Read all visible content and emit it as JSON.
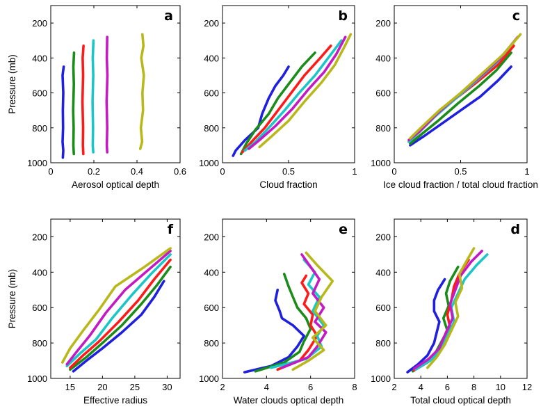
{
  "chart_data": [
    {
      "type": "line",
      "panel_letter": "a",
      "xlabel": "Aerosol optical depth",
      "ylabel": "Pressure (mb)",
      "xlim": [
        0,
        0.6
      ],
      "ylim": [
        1000,
        100
      ],
      "xticks": [
        "0",
        "0.2",
        "0.4",
        "0.6"
      ],
      "yticks": [
        "200",
        "400",
        "600",
        "800",
        "1000"
      ],
      "series": [
        {
          "color": "#1f1fe0",
          "x": [
            0.06,
            0.055,
            0.058,
            0.056,
            0.057,
            0.055,
            0.058,
            0.056
          ],
          "y": [
            450,
            500,
            600,
            700,
            800,
            880,
            930,
            970
          ]
        },
        {
          "color": "#1a8c1a",
          "x": [
            0.108,
            0.105,
            0.107,
            0.104,
            0.106,
            0.105,
            0.107
          ],
          "y": [
            370,
            450,
            550,
            700,
            800,
            900,
            950
          ]
        },
        {
          "color": "#ff1a1a",
          "x": [
            0.152,
            0.148,
            0.15,
            0.147,
            0.15,
            0.149,
            0.151
          ],
          "y": [
            330,
            400,
            500,
            650,
            800,
            900,
            950
          ]
        },
        {
          "color": "#1ac6c6",
          "x": [
            0.198,
            0.195,
            0.197,
            0.194,
            0.196,
            0.195,
            0.197
          ],
          "y": [
            300,
            400,
            500,
            650,
            800,
            900,
            940
          ]
        },
        {
          "color": "#c31ac3",
          "x": [
            0.262,
            0.26,
            0.263,
            0.259,
            0.262,
            0.26,
            0.262
          ],
          "y": [
            280,
            400,
            500,
            650,
            800,
            900,
            940
          ]
        },
        {
          "color": "#b8b81a",
          "x": [
            0.425,
            0.43,
            0.42,
            0.432,
            0.425,
            0.428,
            0.418,
            0.424,
            0.415
          ],
          "y": [
            265,
            330,
            400,
            500,
            600,
            700,
            800,
            880,
            920
          ]
        }
      ]
    },
    {
      "type": "line",
      "panel_letter": "b",
      "xlabel": "Cloud fraction",
      "ylabel": "",
      "xlim": [
        0,
        1
      ],
      "ylim": [
        1000,
        100
      ],
      "xticks": [
        "0",
        "0.5",
        "1"
      ],
      "yticks": [
        "200",
        "400",
        "600",
        "800",
        "1000"
      ],
      "series": [
        {
          "color": "#1f1fe0",
          "x": [
            0.5,
            0.46,
            0.4,
            0.35,
            0.3,
            0.27,
            0.17,
            0.1,
            0.08
          ],
          "y": [
            450,
            500,
            560,
            630,
            720,
            800,
            870,
            930,
            960
          ]
        },
        {
          "color": "#1a8c1a",
          "x": [
            0.7,
            0.6,
            0.5,
            0.42,
            0.35,
            0.25,
            0.18,
            0.14
          ],
          "y": [
            370,
            450,
            550,
            630,
            720,
            810,
            890,
            950
          ]
        },
        {
          "color": "#ff1a1a",
          "x": [
            0.82,
            0.74,
            0.62,
            0.52,
            0.42,
            0.32,
            0.22,
            0.15
          ],
          "y": [
            330,
            400,
            500,
            600,
            700,
            800,
            880,
            940
          ]
        },
        {
          "color": "#1ac6c6",
          "x": [
            0.9,
            0.8,
            0.7,
            0.58,
            0.47,
            0.35,
            0.25,
            0.17
          ],
          "y": [
            300,
            400,
            500,
            600,
            700,
            800,
            880,
            930
          ]
        },
        {
          "color": "#c31ac3",
          "x": [
            0.93,
            0.86,
            0.77,
            0.65,
            0.53,
            0.4,
            0.28,
            0.2
          ],
          "y": [
            280,
            380,
            480,
            580,
            690,
            790,
            870,
            920
          ]
        },
        {
          "color": "#b8b81a",
          "x": [
            0.97,
            0.92,
            0.85,
            0.75,
            0.62,
            0.5,
            0.37,
            0.28
          ],
          "y": [
            265,
            340,
            440,
            540,
            650,
            760,
            850,
            910
          ]
        }
      ]
    },
    {
      "type": "line",
      "panel_letter": "c",
      "xlabel": "Ice cloud fraction / total cloud fraction",
      "ylabel": "",
      "xlim": [
        0,
        1
      ],
      "ylim": [
        1000,
        100
      ],
      "xticks": [
        "0",
        "0.5",
        "1"
      ],
      "yticks": [
        "200",
        "400",
        "600",
        "800",
        "1000"
      ],
      "series": [
        {
          "color": "#1f1fe0",
          "x": [
            0.88,
            0.78,
            0.65,
            0.5,
            0.35,
            0.22,
            0.12
          ],
          "y": [
            450,
            530,
            620,
            700,
            780,
            850,
            900
          ]
        },
        {
          "color": "#1a8c1a",
          "x": [
            0.88,
            0.77,
            0.64,
            0.48,
            0.33,
            0.2,
            0.12
          ],
          "y": [
            370,
            470,
            560,
            660,
            760,
            840,
            890
          ]
        },
        {
          "color": "#ff1a1a",
          "x": [
            0.9,
            0.78,
            0.62,
            0.45,
            0.3,
            0.18,
            0.11
          ],
          "y": [
            330,
            440,
            540,
            640,
            740,
            830,
            880
          ]
        },
        {
          "color": "#1ac6c6",
          "x": [
            0.91,
            0.78,
            0.62,
            0.45,
            0.3,
            0.18,
            0.11
          ],
          "y": [
            300,
            420,
            530,
            640,
            740,
            830,
            880
          ]
        },
        {
          "color": "#c31ac3",
          "x": [
            0.93,
            0.8,
            0.64,
            0.47,
            0.32,
            0.19,
            0.11
          ],
          "y": [
            280,
            400,
            510,
            620,
            720,
            820,
            870
          ]
        },
        {
          "color": "#b8b81a",
          "x": [
            0.95,
            0.82,
            0.66,
            0.5,
            0.34,
            0.2,
            0.12
          ],
          "y": [
            265,
            380,
            490,
            600,
            700,
            800,
            860
          ]
        }
      ]
    },
    {
      "type": "line",
      "panel_letter": "f",
      "xlabel": "Effective radius",
      "ylabel": "Pressure (mb)",
      "xlim": [
        12,
        32
      ],
      "ylim": [
        1000,
        100
      ],
      "xticks": [
        "15",
        "20",
        "25",
        "30"
      ],
      "yticks": [
        "200",
        "400",
        "600",
        "800",
        "1000"
      ],
      "series": [
        {
          "color": "#1f1fe0",
          "x": [
            29.5,
            28.0,
            26.0,
            23.0,
            20.0,
            17.5,
            15.5
          ],
          "y": [
            450,
            540,
            640,
            740,
            830,
            900,
            960
          ]
        },
        {
          "color": "#1a8c1a",
          "x": [
            30.5,
            28.5,
            26.0,
            23.0,
            20.0,
            17.5,
            15.0
          ],
          "y": [
            370,
            470,
            580,
            700,
            800,
            880,
            950
          ]
        },
        {
          "color": "#ff1a1a",
          "x": [
            30.5,
            28.0,
            25.5,
            22.5,
            19.5,
            17.0,
            15.0
          ],
          "y": [
            330,
            440,
            560,
            680,
            790,
            870,
            940
          ]
        },
        {
          "color": "#1ac6c6",
          "x": [
            30.5,
            27.5,
            24.5,
            21.5,
            19.0,
            16.5,
            14.5
          ],
          "y": [
            300,
            410,
            530,
            660,
            780,
            860,
            930
          ]
        },
        {
          "color": "#c31ac3",
          "x": [
            30.5,
            27.0,
            23.5,
            20.5,
            18.0,
            16.0,
            14.5
          ],
          "y": [
            280,
            390,
            500,
            630,
            760,
            850,
            920
          ]
        },
        {
          "color": "#b8b81a",
          "x": [
            30.5,
            26.5,
            22.0,
            19.5,
            17.0,
            15.0,
            13.8
          ],
          "y": [
            265,
            370,
            480,
            610,
            730,
            830,
            910
          ]
        }
      ]
    },
    {
      "type": "line",
      "panel_letter": "e",
      "xlabel": "Water clouds optical depth",
      "ylabel": "",
      "xlim": [
        2,
        8
      ],
      "ylim": [
        1000,
        100
      ],
      "xticks": [
        "2",
        "4",
        "6",
        "8"
      ],
      "yticks": [
        "200",
        "400",
        "600",
        "800",
        "1000"
      ],
      "series": [
        {
          "color": "#1f1fe0",
          "x": [
            4.5,
            4.4,
            4.6,
            4.7,
            5.2,
            5.7,
            5.4,
            5.0,
            4.2,
            3.0
          ],
          "y": [
            500,
            560,
            620,
            660,
            700,
            760,
            820,
            880,
            930,
            965
          ]
        },
        {
          "color": "#1a8c1a",
          "x": [
            4.8,
            5.0,
            5.2,
            5.4,
            5.8,
            6.0,
            5.7,
            5.5,
            4.8,
            3.5
          ],
          "y": [
            410,
            480,
            540,
            600,
            660,
            720,
            790,
            850,
            910,
            960
          ]
        },
        {
          "color": "#ff1a1a",
          "x": [
            5.8,
            5.6,
            5.9,
            5.7,
            6.1,
            6.0,
            6.3,
            5.9,
            5.5,
            4.5
          ],
          "y": [
            420,
            460,
            520,
            580,
            640,
            700,
            760,
            840,
            900,
            950
          ]
        },
        {
          "color": "#1ac6c6",
          "x": [
            5.7,
            6.2,
            5.9,
            6.4,
            6.1,
            6.6,
            6.3,
            6.5,
            5.8,
            4.2
          ],
          "y": [
            330,
            400,
            470,
            540,
            620,
            700,
            760,
            820,
            890,
            940
          ]
        },
        {
          "color": "#c31ac3",
          "x": [
            5.6,
            6.0,
            6.4,
            6.1,
            6.6,
            6.2,
            6.7,
            6.3,
            5.9,
            4.7
          ],
          "y": [
            300,
            370,
            440,
            520,
            600,
            680,
            740,
            820,
            880,
            940
          ]
        },
        {
          "color": "#b8b81a",
          "x": [
            5.8,
            6.3,
            7.0,
            6.5,
            6.2,
            6.7,
            6.1,
            6.6,
            5.9,
            5.2
          ],
          "y": [
            290,
            360,
            450,
            540,
            620,
            700,
            770,
            840,
            900,
            950
          ]
        }
      ]
    },
    {
      "type": "line",
      "panel_letter": "d",
      "xlabel": "Total cloud optical depth",
      "ylabel": "",
      "xlim": [
        2,
        12
      ],
      "ylim": [
        1000,
        100
      ],
      "xticks": [
        "2",
        "4",
        "6",
        "8",
        "10",
        "12"
      ],
      "yticks": [
        "200",
        "400",
        "600",
        "800",
        "1000"
      ],
      "series": [
        {
          "color": "#1f1fe0",
          "x": [
            5.8,
            5.3,
            5.0,
            5.0,
            5.4,
            5.2,
            5.0,
            4.5,
            3.8,
            3.0
          ],
          "y": [
            440,
            500,
            560,
            620,
            680,
            740,
            800,
            870,
            920,
            965
          ]
        },
        {
          "color": "#1a8c1a",
          "x": [
            6.8,
            6.2,
            5.9,
            6.1,
            5.7,
            6.0,
            5.5,
            5.0,
            4.2,
            3.4
          ],
          "y": [
            370,
            450,
            520,
            590,
            660,
            730,
            800,
            870,
            920,
            960
          ]
        },
        {
          "color": "#ff1a1a",
          "x": [
            7.6,
            6.9,
            6.5,
            6.3,
            6.0,
            6.2,
            5.8,
            5.3,
            4.5,
            3.5
          ],
          "y": [
            330,
            410,
            480,
            560,
            640,
            710,
            790,
            860,
            910,
            955
          ]
        },
        {
          "color": "#1ac6c6",
          "x": [
            9.0,
            8.2,
            7.3,
            6.8,
            6.3,
            6.5,
            6.0,
            5.5,
            4.7,
            3.6
          ],
          "y": [
            300,
            360,
            440,
            520,
            600,
            680,
            760,
            840,
            900,
            950
          ]
        },
        {
          "color": "#c31ac3",
          "x": [
            8.6,
            7.8,
            7.0,
            6.6,
            6.2,
            6.4,
            5.9,
            5.4,
            4.6,
            3.5
          ],
          "y": [
            280,
            340,
            420,
            500,
            580,
            660,
            740,
            830,
            890,
            945
          ]
        },
        {
          "color": "#b8b81a",
          "x": [
            8.0,
            7.5,
            6.9,
            7.1,
            6.6,
            6.8,
            6.3,
            5.8,
            5.2,
            4.5
          ],
          "y": [
            265,
            330,
            410,
            490,
            570,
            650,
            730,
            810,
            880,
            940
          ]
        }
      ]
    }
  ]
}
